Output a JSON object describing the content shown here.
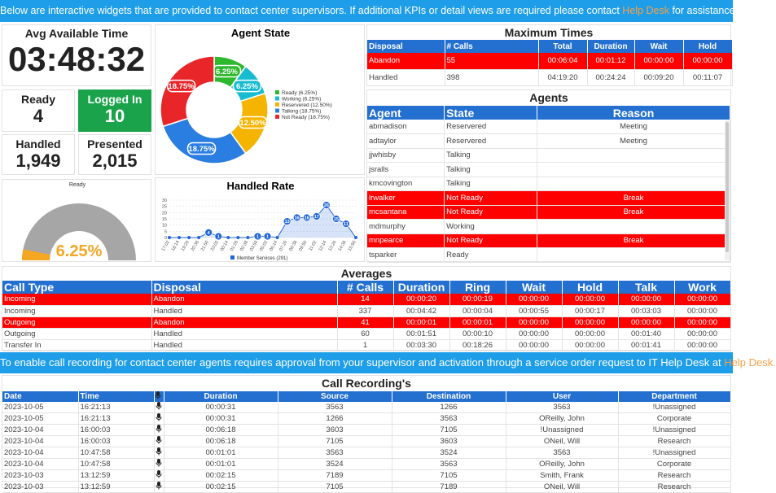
{
  "banner": {
    "text": "Below are interactive widgets that are provided to contact center supervisors. If additional KPIs or detail views are required please contact ",
    "link": "Help Desk",
    "text_after": " for assistance."
  },
  "kpis": {
    "avg_available_time": {
      "label": "Avg Available Time",
      "value": "03:48:32"
    },
    "ready": {
      "label": "Ready",
      "value": 4
    },
    "logged_in": {
      "label": "Logged In",
      "value": 10
    },
    "handled": {
      "label": "Handled",
      "value": "1,949"
    },
    "presented": {
      "label": "Presented",
      "value": "2,015"
    }
  },
  "chart_data": [
    {
      "type": "donut",
      "title": "Agent State",
      "categories": [
        "Ready (6.25%)",
        "Working (6.25%)",
        "Reservered (12.50%)",
        "Talking (18.75%)",
        "Not Ready (18.75%)"
      ],
      "values": [
        6.25,
        6.25,
        12.5,
        18.75,
        18.75
      ],
      "value_labels": [
        "6.25%",
        "6.25%",
        "12.50%",
        "18.75%",
        "18.75%"
      ],
      "colors": [
        "#2eb82e",
        "#17bcd0",
        "#f5b400",
        "#2a7de1",
        "#e8262a"
      ]
    },
    {
      "type": "gauge",
      "title": "Ready",
      "value": 6.25,
      "value_label": "6.25%",
      "ylim": [
        0,
        100
      ],
      "colors": [
        "#f5a623",
        "#a6a6a6"
      ]
    },
    {
      "type": "line",
      "title": "Handled Rate",
      "categories": [
        "17:02",
        "18:14",
        "19:26",
        "20:38",
        "21:50",
        "23:02",
        "00:14",
        "01:26",
        "02:38",
        "03:50",
        "05:02",
        "06:14",
        "07:26",
        "08:38",
        "09:50",
        "11:02",
        "12:14",
        "13:26",
        "14:38",
        "15:50"
      ],
      "series": [
        {
          "name": "Member Services (291)",
          "color": "#2166d9",
          "values": [
            0,
            0,
            0,
            0,
            4,
            1,
            0,
            0,
            0,
            1,
            1,
            0,
            13,
            16,
            16,
            17,
            26,
            15,
            11,
            0
          ]
        }
      ],
      "ylim": [
        0,
        30
      ],
      "yticks": [
        0,
        5,
        10,
        15,
        20,
        25,
        30
      ],
      "grid": true
    }
  ],
  "maximum_times": {
    "title": "Maximum Times",
    "columns": [
      "Disposal",
      "# Calls",
      "Total",
      "Duration",
      "Wait",
      "Hold"
    ],
    "rows": [
      [
        "Abandon",
        55,
        "00:06:04",
        "00:01:12",
        "00:00:00",
        "00:00:00"
      ],
      [
        "Handled",
        398,
        "04:19:20",
        "00:24:24",
        "00:09:20",
        "00:11:07"
      ]
    ],
    "highlight_rows": [
      0
    ]
  },
  "agents": {
    "title": "Agents",
    "columns": [
      "Agent",
      "State",
      "Reason"
    ],
    "rows": [
      [
        "abmadison",
        "Reservered",
        "Meeting"
      ],
      [
        "adtaylor",
        "Reservered",
        "Meeting"
      ],
      [
        "jjwhisby",
        "Talking"
      ],
      [
        "jsralls",
        "Talking"
      ],
      [
        "kmcovington",
        "Talking"
      ],
      [
        "lrwalker",
        "Not Ready",
        "Break"
      ],
      [
        "mcsantana",
        "Not Ready",
        "Break"
      ],
      [
        "mdmurphy",
        "Working"
      ],
      [
        "mnpearce",
        "Not Ready",
        "Break"
      ],
      [
        "tsparker",
        "Ready"
      ]
    ],
    "highlight_rows": [
      5,
      6,
      8
    ]
  },
  "averages": {
    "title": "Averages",
    "columns": [
      "Call Type",
      "Disposal",
      "# Calls",
      "Duration",
      "Ring",
      "Wait",
      "Hold",
      "Talk",
      "Work"
    ],
    "rows": [
      [
        "Incoming",
        "Abandon",
        14,
        "00:00:20",
        "00:00:19",
        "00:00:00",
        "00:00:00",
        "00:00:00",
        "00:00:00"
      ],
      [
        "Incoming",
        "Handled",
        337,
        "00:04:42",
        "00:00:04",
        "00:00:55",
        "00:00:17",
        "00:03:03",
        "00:00:00"
      ],
      [
        "Outgoing",
        "Abandon",
        41,
        "00:00:01",
        "00:00:01",
        "00:00:00",
        "00:00:00",
        "00:00:00",
        "00:00:00"
      ],
      [
        "Outgoing",
        "Handled",
        60,
        "00:01:51",
        "00:00:10",
        "00:00:00",
        "00:00:00",
        "00:01:40",
        "00:00:00"
      ],
      [
        "Transfer In",
        "Handled",
        1,
        "00:03:30",
        "00:18:26",
        "00:00:00",
        "00:00:00",
        "00:01:41",
        "00:00:00"
      ]
    ],
    "highlight_rows": [
      0,
      2
    ]
  },
  "banner2": {
    "text": "To enable call recording for contact center agents requires approval from your supervisor and activation through a service order request to IT Help Desk at ",
    "link": "Help Desk."
  },
  "call_recordings": {
    "title": "Call Recording's",
    "columns": [
      "Date",
      "Time",
      "Duration",
      "Source",
      "Destination",
      "User",
      "Department"
    ],
    "rows": [
      [
        "2023-10-05",
        "16:21:13",
        "00:00:31",
        "3563",
        "1266",
        "3563",
        "!Unassigned"
      ],
      [
        "2023-10-05",
        "16:21:13",
        "00:00:31",
        "1266",
        "3563",
        "OReilly, John",
        "Corporate"
      ],
      [
        "2023-10-04",
        "16:00:03",
        "00:06:18",
        "3603",
        "7105",
        "!Unassigned",
        "!Unassigned"
      ],
      [
        "2023-10-04",
        "16:00:03",
        "00:06:18",
        "7105",
        "3603",
        "ONeil, Will",
        "Research"
      ],
      [
        "2023-10-04",
        "10:47:58",
        "00:01:01",
        "3563",
        "3524",
        "3563",
        "!Unassigned"
      ],
      [
        "2023-10-04",
        "10:47:58",
        "00:01:01",
        "3524",
        "3563",
        "OReilly, John",
        "Corporate"
      ],
      [
        "2023-10-03",
        "13:12:59",
        "00:02:15",
        "7189",
        "7105",
        "Smith, Frank",
        "Research"
      ],
      [
        "2023-10-03",
        "13:12:59",
        "00:02:15",
        "7105",
        "7189",
        "ONeil, Will",
        "Research"
      ]
    ]
  }
}
